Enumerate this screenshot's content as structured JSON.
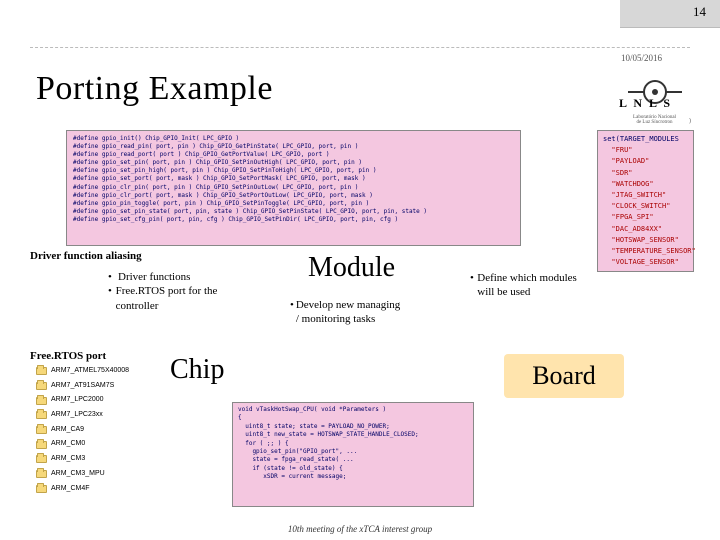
{
  "page_number": "14",
  "date": "10/05/2016",
  "title": "Porting Example",
  "logo": {
    "text": "L N L S",
    "sub1": "Laboratório Nacional",
    "sub2": "de Luz Síncrotron"
  },
  "driver_label": "Driver function aliasing",
  "freertos_label": "Free.RTOS port",
  "bullets_left": [
    "Driver functions",
    "Free.RTOS port for the controller"
  ],
  "bullets_mid": [
    "Develop new managing / monitoring tasks"
  ],
  "bullets_right": [
    "Define which modules will be used"
  ],
  "big_module": "Module",
  "big_chip": "Chip",
  "big_board": "Board",
  "code_lines": [
    "#define gpio_init()              Chip_GPIO_Init( LPC_GPIO )",
    "#define gpio_read_pin( port, pin )   Chip_GPIO_GetPinState( LPC_GPIO, port, pin )",
    "#define gpio_read_port( port )       Chip_GPIO_GetPortValue( LPC_GPIO, port )",
    "#define gpio_set_pin( port, pin )    Chip_GPIO_SetPinOutHigh( LPC_GPIO, port, pin )",
    "#define gpio_set_pin_high( port, pin ) Chip_GPIO_SetPinToHigh( LPC_GPIO, port, pin )",
    "#define gpio_set_port( port, mask )  Chip_GPIO_SetPortMask( LPC_GPIO, port, mask )",
    "#define gpio_clr_pin( port, pin )    Chip_GPIO_SetPinOutLow( LPC_GPIO, port, pin )",
    "#define gpio_clr_port( port, mask )  Chip_GPIO_SetPortOutLow( LPC_GPIO, port, mask )",
    "#define gpio_pin_toggle( port, pin ) Chip_GPIO_SetPinToggle( LPC_GPIO, port, pin )",
    "#define gpio_set_pin_state( port, pin, state ) Chip_GPIO_SetPinState( LPC_GPIO, port, pin, state )",
    "#define gpio_set_cfg_pin( port, pin, cfg )     Chip_GPIO_SetPinDir( LPC_GPIO, port, pin, cfg )"
  ],
  "modlist_header": "set(TARGET_MODULES",
  "modlist_items": [
    "\"FRU\"",
    "\"PAYLOAD\"",
    "\"SDR\"",
    "\"WATCHDOG\"",
    "\"JTAG_SWITCH\"",
    "\"CLOCK_SWITCH\"",
    "\"FPGA_SPI\"",
    "\"DAC_AD84XX\"",
    "\"HOTSWAP_SENSOR\"",
    "\"TEMPERATURE_SENSOR\"",
    "\"VOLTAGE_SENSOR\""
  ],
  "modlist_foot": ")",
  "folders": [
    "ARM7_ATMEL75X40008",
    "ARM7_AT91SAM7S",
    "ARM7_LPC2000",
    "ARM7_LPC23xx",
    "ARM_CA9",
    "ARM_CM0",
    "ARM_CM3",
    "ARM_CM3_MPU",
    "ARM_CM4F"
  ],
  "botcode": [
    "void vTaskHotSwap_CPU( void *Parameters )",
    "{",
    "  uint8_t state; state = PAYLOAD_NO_POWER;",
    "  uint8_t new_state = HOTSWAP_STATE_HANDLE_CLOSED;",
    "",
    "  for ( ;; ) {",
    "    gpio_set_pin(\"GPIO_port\", ...",
    "    state = fpga_read_state( ...",
    "",
    "    if (state != old_state) {",
    "",
    "       xSDR = current message;"
  ],
  "footer": "10th meeting of the xTCA interest group",
  "colors": {
    "pink": "#f4c7e0",
    "board_bg": "#ffe4ad",
    "keyword": "#006",
    "string": "#a00"
  }
}
